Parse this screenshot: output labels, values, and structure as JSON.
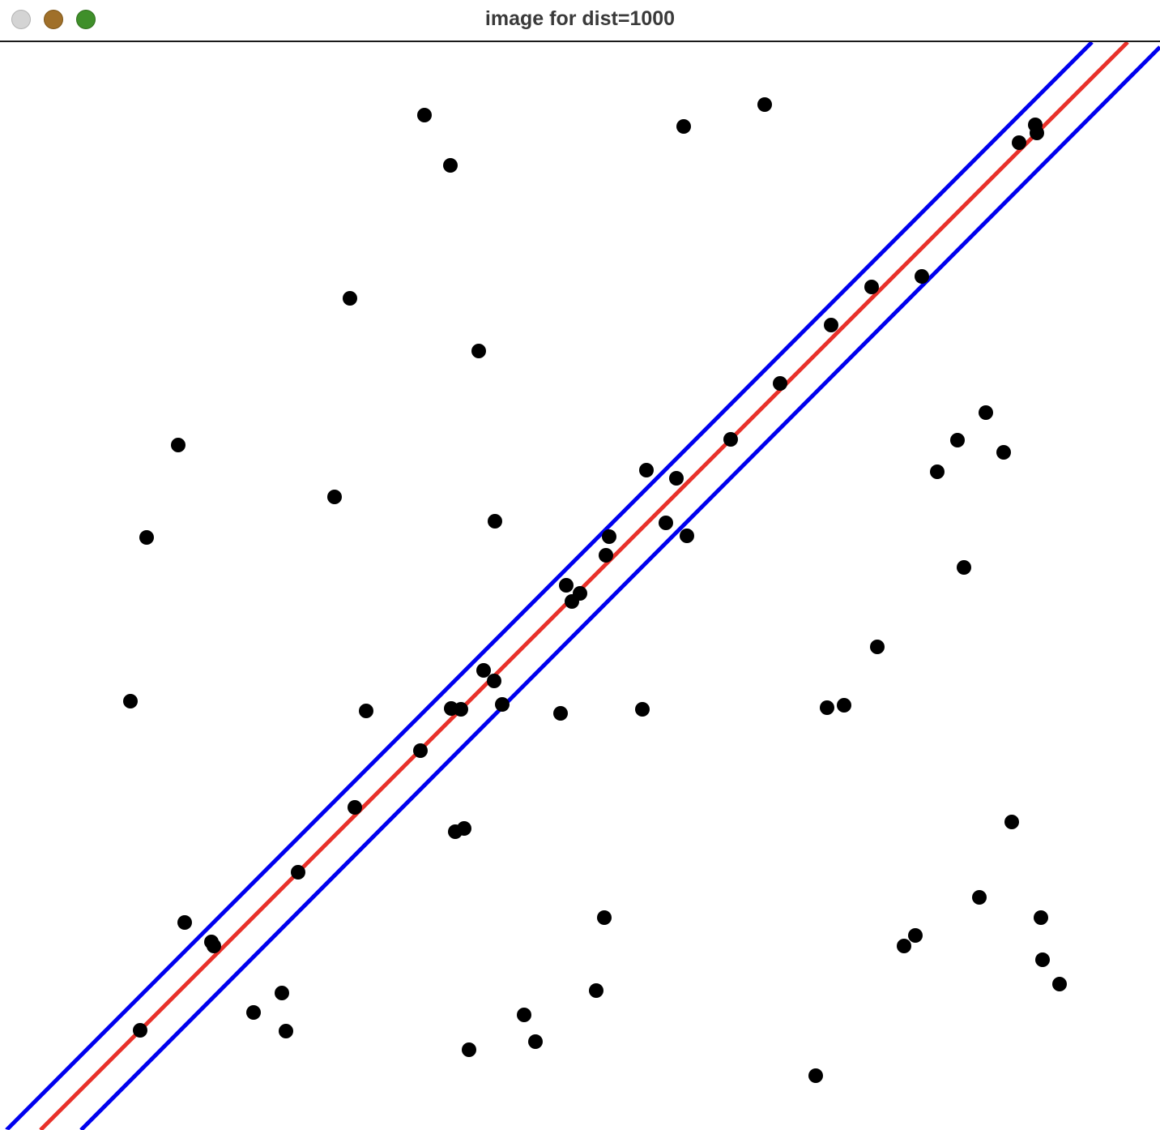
{
  "window": {
    "title": "image for dist=1000",
    "controls": [
      {
        "name": "close",
        "icon": "circle-icon",
        "color": "#d4d4d4"
      },
      {
        "name": "minimize",
        "icon": "circle-icon",
        "color": "#a0702a"
      },
      {
        "name": "zoom",
        "icon": "circle-icon",
        "color": "#3f8f2a"
      }
    ]
  },
  "plot": {
    "colors": {
      "background": "#ffffff",
      "points": "#000000",
      "fit_line": "#e8312a",
      "boundary_lines": "#0000ee"
    }
  }
}
